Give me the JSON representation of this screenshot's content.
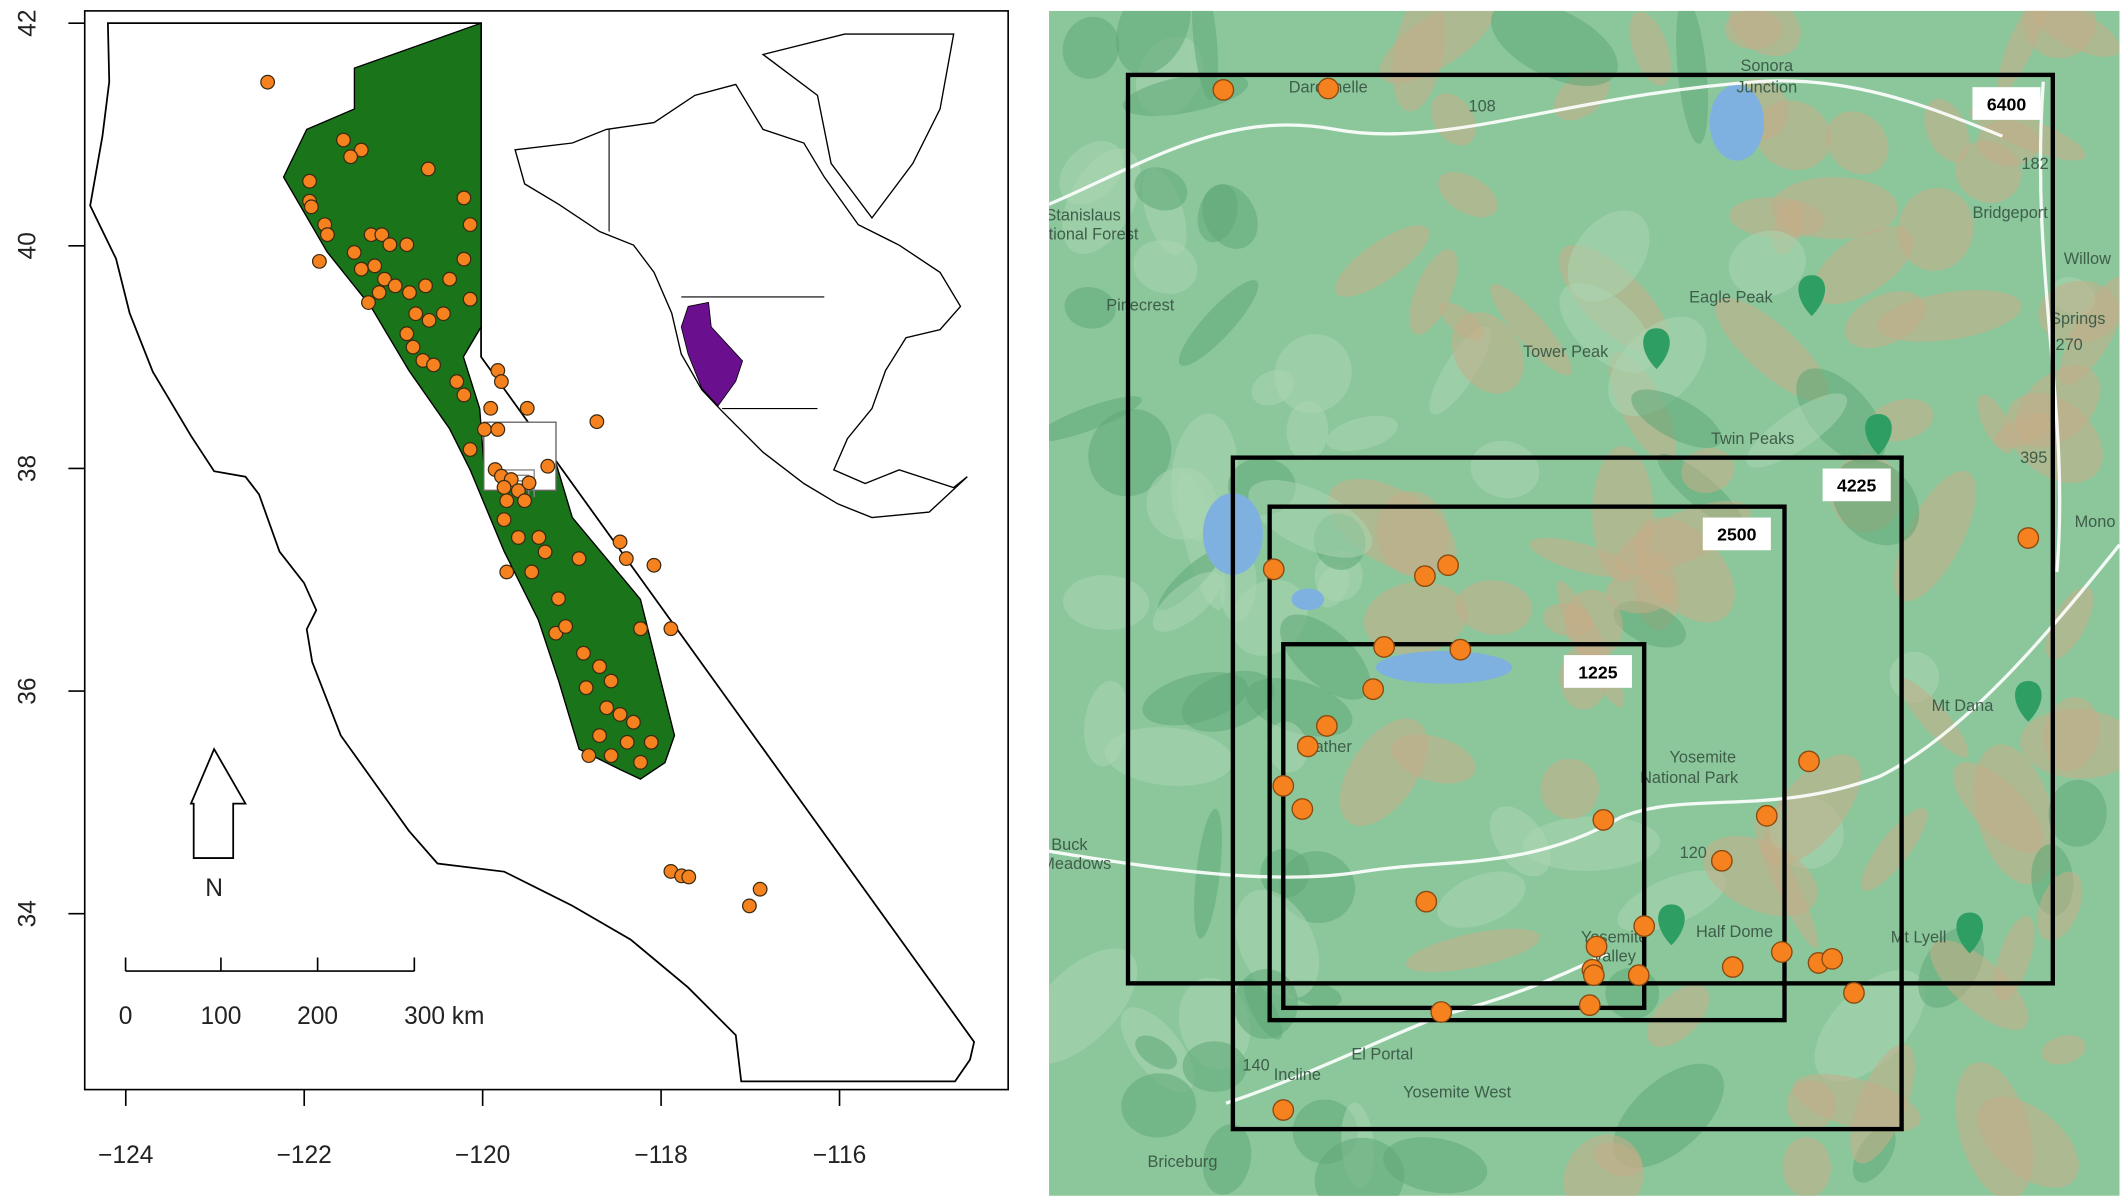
{
  "chart_data": {
    "type": "scatter",
    "x": [
      -122.41,
      -121.56,
      -121.36,
      -121.48,
      -120.61,
      -121.94,
      -121.94,
      -121.92,
      -121.83,
      -121.77,
      -121.74,
      -121.25,
      -121.13,
      -121.04,
      -120.85,
      -120.21,
      -120.14,
      -121.44,
      -121.36,
      -121.21,
      -121.1,
      -120.98,
      -121.16,
      -121.28,
      -120.82,
      -120.64,
      -120.44,
      -120.75,
      -120.6,
      -120.37,
      -120.21,
      -120.14,
      -120.85,
      -120.78,
      -120.67,
      -120.55,
      -120.29,
      -119.83,
      -119.79,
      -120.21,
      -119.91,
      -119.5,
      -119.98,
      -119.83,
      -120.14,
      -118.72,
      -119.86,
      -119.79,
      -119.68,
      -119.76,
      -119.6,
      -119.48,
      -119.73,
      -119.53,
      -119.27,
      -119.76,
      -119.6,
      -119.37,
      -119.3,
      -119.73,
      -119.45,
      -119.15,
      -118.92,
      -118.46,
      -118.39,
      -118.08,
      -119.18,
      -119.07,
      -118.87,
      -118.69,
      -118.56,
      -118.23,
      -117.89,
      -118.84,
      -118.61,
      -118.46,
      -118.31,
      -118.69,
      -118.81,
      -118.56,
      -118.38,
      -118.23,
      -118.11,
      -117.89,
      -117.77,
      -117.69,
      -116.89,
      -117.01
    ],
    "y": [
      41.47,
      40.95,
      40.86,
      40.8,
      40.69,
      40.58,
      40.4,
      40.35,
      39.86,
      40.19,
      40.1,
      40.1,
      40.1,
      40.01,
      40.01,
      40.43,
      40.19,
      39.94,
      39.79,
      39.82,
      39.7,
      39.64,
      39.58,
      39.49,
      39.58,
      39.64,
      39.39,
      39.39,
      39.33,
      39.7,
      39.88,
      39.52,
      39.21,
      39.09,
      38.97,
      38.93,
      38.78,
      38.88,
      38.78,
      38.66,
      38.54,
      38.54,
      38.35,
      38.35,
      38.17,
      38.42,
      37.99,
      37.93,
      37.9,
      37.83,
      37.8,
      37.87,
      37.71,
      37.71,
      38.02,
      37.54,
      37.38,
      37.38,
      37.25,
      37.07,
      37.07,
      36.83,
      37.19,
      37.34,
      37.19,
      37.13,
      36.52,
      36.58,
      36.34,
      36.22,
      36.09,
      36.56,
      36.56,
      36.03,
      35.85,
      35.79,
      35.72,
      35.6,
      35.42,
      35.42,
      35.54,
      35.36,
      35.54,
      34.38,
      34.34,
      34.33,
      34.22,
      34.07
    ],
    "color": "#f5821f",
    "range_color": "#1a741a",
    "inset_range_color": "#6a0f8e",
    "xlim": [
      -124.46,
      -114.11
    ],
    "ylim": [
      32.42,
      42.11
    ],
    "xticks": [
      -124,
      -122,
      -120,
      -118,
      -116
    ],
    "yticks": [
      34,
      36,
      38,
      40,
      42
    ],
    "north_label": "N",
    "scale_bar": [
      "0",
      "100",
      "200",
      "300 km"
    ]
  },
  "map": {
    "boxes": [
      6400,
      4225,
      2500,
      1225
    ],
    "places": [
      "Dardanelle",
      "Sonora",
      "Junction",
      "Bridgeport",
      "Eagle Peak",
      "Tower Peak",
      "Twin Peaks",
      "Willow",
      "Springs",
      "Pinecrest",
      "Mt Dana",
      "Yosemite",
      "National Park",
      "Half Dome",
      "Mt Lyell",
      "El Portal",
      "Incline",
      "Yosemite West",
      "Briceburg",
      "Buck",
      "Meadows",
      "Mono",
      "Mather",
      "Yosemite",
      "Valley",
      "Stanislaus",
      "National Forest",
      "108",
      "120",
      "140",
      "182",
      "270",
      "395"
    ]
  }
}
